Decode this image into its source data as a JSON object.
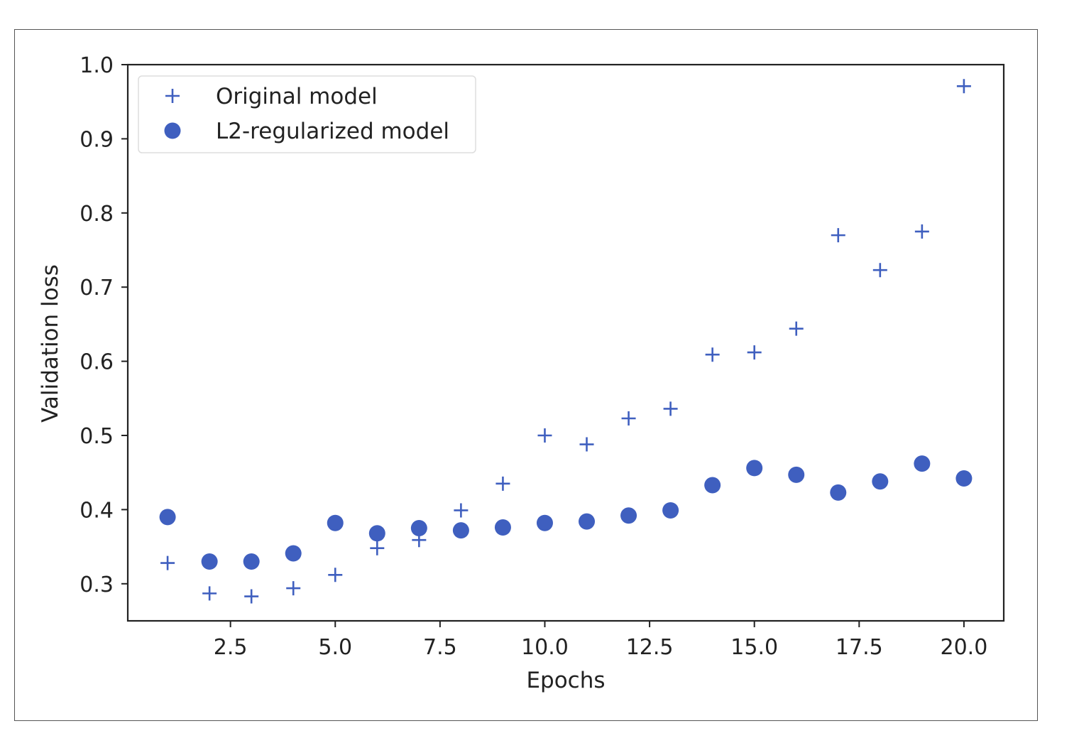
{
  "chart_data": {
    "type": "scatter",
    "xlabel": "Epochs",
    "ylabel": "Validation loss",
    "xlim": [
      0.05,
      20.95
    ],
    "ylim": [
      0.25,
      1.0
    ],
    "xticks": [
      "2.5",
      "5.0",
      "7.5",
      "10.0",
      "12.5",
      "15.0",
      "17.5",
      "20.0"
    ],
    "yticks": [
      "0.3",
      "0.4",
      "0.5",
      "0.6",
      "0.7",
      "0.8",
      "0.9",
      "1.0"
    ],
    "grid": false,
    "legend_position": "top-left",
    "color": "#3f5fbf",
    "series": [
      {
        "name": "Original model",
        "marker": "plus",
        "x": [
          1,
          2,
          3,
          4,
          5,
          6,
          7,
          8,
          9,
          10,
          11,
          12,
          13,
          14,
          15,
          16,
          17,
          18,
          19,
          20
        ],
        "y": [
          0.328,
          0.287,
          0.283,
          0.294,
          0.312,
          0.348,
          0.359,
          0.399,
          0.435,
          0.5,
          0.488,
          0.523,
          0.536,
          0.609,
          0.612,
          0.644,
          0.77,
          0.723,
          0.775,
          0.971
        ]
      },
      {
        "name": "L2-regularized model",
        "marker": "circle",
        "x": [
          1,
          2,
          3,
          4,
          5,
          6,
          7,
          8,
          9,
          10,
          11,
          12,
          13,
          14,
          15,
          16,
          17,
          18,
          19,
          20
        ],
        "y": [
          0.39,
          0.33,
          0.33,
          0.341,
          0.382,
          0.368,
          0.375,
          0.372,
          0.376,
          0.382,
          0.384,
          0.392,
          0.399,
          0.433,
          0.456,
          0.447,
          0.423,
          0.438,
          0.462,
          0.442
        ]
      }
    ]
  }
}
